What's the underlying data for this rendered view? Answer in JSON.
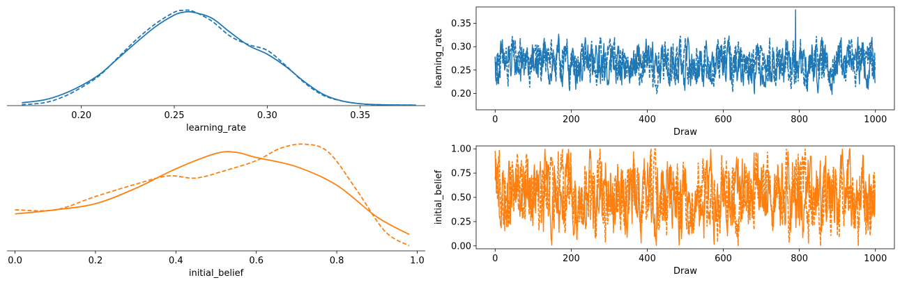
{
  "chart_data": [
    {
      "type": "line",
      "panel": "kde-learning_rate",
      "xlabel": "learning_rate",
      "ylabel": "",
      "xlim": [
        0.16,
        0.385
      ],
      "ylim": [
        0,
        1.05
      ],
      "xticks": [
        0.2,
        0.25,
        0.3,
        0.35
      ],
      "xtick_labels": [
        "0.20",
        "0.25",
        "0.30",
        "0.35"
      ],
      "grid": false,
      "color": "#1f77b4",
      "series": [
        {
          "style": "solid",
          "x": [
            0.168,
            0.18,
            0.19,
            0.2,
            0.21,
            0.22,
            0.23,
            0.24,
            0.25,
            0.255,
            0.26,
            0.27,
            0.28,
            0.29,
            0.3,
            0.31,
            0.32,
            0.33,
            0.34,
            0.35,
            0.36,
            0.38
          ],
          "y": [
            0.03,
            0.06,
            0.12,
            0.21,
            0.33,
            0.5,
            0.67,
            0.83,
            0.95,
            0.98,
            0.98,
            0.92,
            0.77,
            0.63,
            0.54,
            0.41,
            0.25,
            0.12,
            0.05,
            0.02,
            0.01,
            0.005
          ]
        },
        {
          "style": "dashed",
          "x": [
            0.168,
            0.18,
            0.19,
            0.2,
            0.21,
            0.22,
            0.23,
            0.24,
            0.25,
            0.255,
            0.26,
            0.27,
            0.28,
            0.29,
            0.3,
            0.31,
            0.32,
            0.33,
            0.34,
            0.35,
            0.36,
            0.38
          ],
          "y": [
            0.01,
            0.03,
            0.09,
            0.19,
            0.32,
            0.51,
            0.7,
            0.86,
            0.98,
            1.0,
            0.99,
            0.89,
            0.73,
            0.64,
            0.58,
            0.42,
            0.24,
            0.11,
            0.05,
            0.02,
            0.01,
            0.005
          ]
        }
      ]
    },
    {
      "type": "line",
      "panel": "trace-learning_rate",
      "xlabel": "Draw",
      "ylabel": "learning_rate",
      "xlim": [
        -50,
        1050
      ],
      "ylim": [
        0.165,
        0.385
      ],
      "xticks": [
        0,
        200,
        400,
        600,
        800,
        1000
      ],
      "xtick_labels": [
        "0",
        "200",
        "400",
        "600",
        "800",
        "1000"
      ],
      "yticks": [
        0.2,
        0.25,
        0.3,
        0.35
      ],
      "ytick_labels": [
        "0.20",
        "0.25",
        "0.30",
        "0.35"
      ],
      "grid": false,
      "color": "#1f77b4",
      "n_draws": 1000,
      "center": 0.262,
      "spread": 0.03,
      "range": [
        0.17,
        0.38
      ],
      "max_point": [
        790,
        0.38
      ]
    },
    {
      "type": "line",
      "panel": "kde-initial_belief",
      "xlabel": "initial_belief",
      "ylabel": "",
      "xlim": [
        -0.02,
        1.02
      ],
      "ylim": [
        0,
        1.05
      ],
      "xticks": [
        0.0,
        0.2,
        0.4,
        0.6,
        0.8,
        1.0
      ],
      "xtick_labels": [
        "0.0",
        "0.2",
        "0.4",
        "0.6",
        "0.8",
        "1.0"
      ],
      "grid": false,
      "color": "#ff7f0e",
      "series": [
        {
          "style": "solid",
          "x": [
            0.0,
            0.1,
            0.2,
            0.3,
            0.4,
            0.5,
            0.55,
            0.6,
            0.7,
            0.8,
            0.9,
            0.98
          ],
          "y": [
            0.36,
            0.4,
            0.46,
            0.61,
            0.8,
            0.95,
            0.96,
            0.91,
            0.82,
            0.64,
            0.33,
            0.16
          ]
        },
        {
          "style": "dashed",
          "x": [
            0.0,
            0.1,
            0.2,
            0.3,
            0.38,
            0.45,
            0.52,
            0.6,
            0.66,
            0.72,
            0.78,
            0.85,
            0.92,
            0.98
          ],
          "y": [
            0.4,
            0.4,
            0.53,
            0.65,
            0.73,
            0.71,
            0.78,
            0.88,
            1.0,
            1.04,
            0.96,
            0.59,
            0.19,
            0.05
          ]
        }
      ]
    },
    {
      "type": "line",
      "panel": "trace-initial_belief",
      "xlabel": "Draw",
      "ylabel": "initial_belief",
      "xlim": [
        -50,
        1050
      ],
      "ylim": [
        -0.03,
        1.03
      ],
      "xticks": [
        0,
        200,
        400,
        600,
        800,
        1000
      ],
      "xtick_labels": [
        "0",
        "200",
        "400",
        "600",
        "800",
        "1000"
      ],
      "yticks": [
        0.0,
        0.25,
        0.5,
        0.75,
        1.0
      ],
      "ytick_labels": [
        "0.00",
        "0.25",
        "0.50",
        "0.75",
        "1.00"
      ],
      "grid": false,
      "color": "#ff7f0e",
      "n_draws": 1000,
      "center": 0.5,
      "spread": 0.25,
      "range": [
        0.0,
        1.0
      ]
    }
  ]
}
